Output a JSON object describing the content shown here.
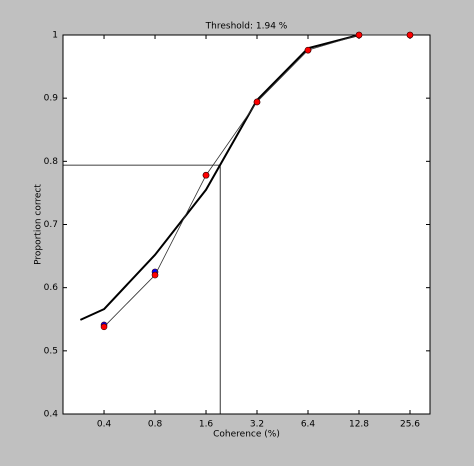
{
  "chart_data": {
    "type": "line",
    "title": "Threshold:  1.94 %",
    "x_label": "Coherence (%)",
    "y_label": "Proportion correct",
    "x_scale": "log",
    "xlim": [
      0.229,
      33.6
    ],
    "ylim": [
      0.4,
      1
    ],
    "xticks": [
      0.4,
      0.8,
      1.6,
      3.2,
      6.4,
      12.8,
      25.6
    ],
    "yticks": [
      0.4,
      0.5,
      0.6,
      0.7,
      0.8,
      0.9,
      1
    ],
    "threshold": {
      "x": 1.94,
      "y": 0.794,
      "color": "#000000"
    },
    "series": [
      {
        "style": "line",
        "color": "#000000",
        "width": 2,
        "x": [
          0.29,
          0.4,
          0.8,
          1.6,
          3.2,
          6.4,
          12.8
        ],
        "values": [
          0.549,
          0.566,
          0.652,
          0.755,
          0.897,
          0.979,
          1
        ]
      },
      {
        "style": "markers",
        "color": "#0000ff",
        "x": [
          0.4,
          0.8,
          1.6,
          3.2,
          6.4,
          12.8,
          25.6
        ],
        "values": [
          0.541,
          0.625,
          0.778,
          0.894,
          0.976,
          1,
          1
        ]
      },
      {
        "style": "line+markers",
        "color": "#ff0000",
        "line_color": "#333333",
        "width": 0.8,
        "x": [
          0.4,
          0.8,
          1.6,
          3.2,
          6.4,
          12.8,
          25.6
        ],
        "values": [
          0.538,
          0.62,
          0.778,
          0.894,
          0.976,
          1,
          1
        ]
      }
    ]
  }
}
